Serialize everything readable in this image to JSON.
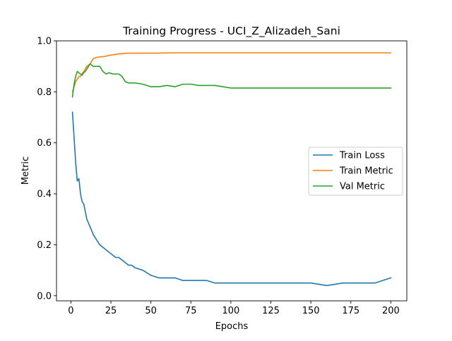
{
  "chart_data": {
    "type": "line",
    "title": "Training Progress - UCI_Z_Alizadeh_Sani",
    "xlabel": "Epochs",
    "ylabel": "Metric",
    "xlim": [
      -9,
      210
    ],
    "ylim": [
      -0.02,
      1.0
    ],
    "xticks": [
      0,
      25,
      50,
      75,
      100,
      125,
      150,
      175,
      200
    ],
    "yticks": [
      0.0,
      0.2,
      0.4,
      0.6,
      0.8,
      1.0
    ],
    "grid": false,
    "legend_position": "center-right",
    "x": [
      1,
      2,
      3,
      4,
      5,
      6,
      7,
      8,
      9,
      10,
      12,
      14,
      16,
      18,
      20,
      22,
      24,
      26,
      28,
      30,
      32,
      34,
      36,
      38,
      40,
      45,
      50,
      55,
      60,
      65,
      70,
      75,
      80,
      85,
      90,
      95,
      100,
      110,
      120,
      130,
      140,
      150,
      160,
      170,
      180,
      190,
      200
    ],
    "series": [
      {
        "name": "Train Loss",
        "color": "#1f77b4",
        "values": [
          0.72,
          0.62,
          0.52,
          0.45,
          0.46,
          0.4,
          0.37,
          0.36,
          0.33,
          0.3,
          0.27,
          0.24,
          0.22,
          0.2,
          0.19,
          0.18,
          0.17,
          0.16,
          0.15,
          0.15,
          0.14,
          0.13,
          0.12,
          0.12,
          0.11,
          0.1,
          0.08,
          0.07,
          0.07,
          0.07,
          0.06,
          0.06,
          0.06,
          0.06,
          0.05,
          0.05,
          0.05,
          0.05,
          0.05,
          0.05,
          0.05,
          0.05,
          0.04,
          0.05,
          0.05,
          0.05,
          0.07
        ]
      },
      {
        "name": "Train Metric",
        "color": "#ff7f0e",
        "values": [
          0.8,
          0.82,
          0.84,
          0.85,
          0.86,
          0.86,
          0.87,
          0.88,
          0.89,
          0.9,
          0.91,
          0.93,
          0.935,
          0.937,
          0.938,
          0.94,
          0.943,
          0.945,
          0.947,
          0.949,
          0.95,
          0.951,
          0.952,
          0.952,
          0.952,
          0.952,
          0.952,
          0.952,
          0.953,
          0.953,
          0.953,
          0.953,
          0.953,
          0.953,
          0.953,
          0.953,
          0.953,
          0.953,
          0.953,
          0.953,
          0.953,
          0.953,
          0.953,
          0.953,
          0.953,
          0.953,
          0.953
        ]
      },
      {
        "name": "Val Metric",
        "color": "#2ca02c",
        "values": [
          0.78,
          0.83,
          0.86,
          0.88,
          0.875,
          0.87,
          0.865,
          0.875,
          0.88,
          0.89,
          0.91,
          0.9,
          0.9,
          0.9,
          0.88,
          0.87,
          0.875,
          0.87,
          0.87,
          0.87,
          0.86,
          0.84,
          0.835,
          0.835,
          0.835,
          0.83,
          0.82,
          0.82,
          0.825,
          0.82,
          0.83,
          0.83,
          0.825,
          0.825,
          0.825,
          0.82,
          0.815,
          0.815,
          0.815,
          0.815,
          0.815,
          0.815,
          0.815,
          0.815,
          0.815,
          0.815,
          0.815
        ]
      }
    ]
  }
}
